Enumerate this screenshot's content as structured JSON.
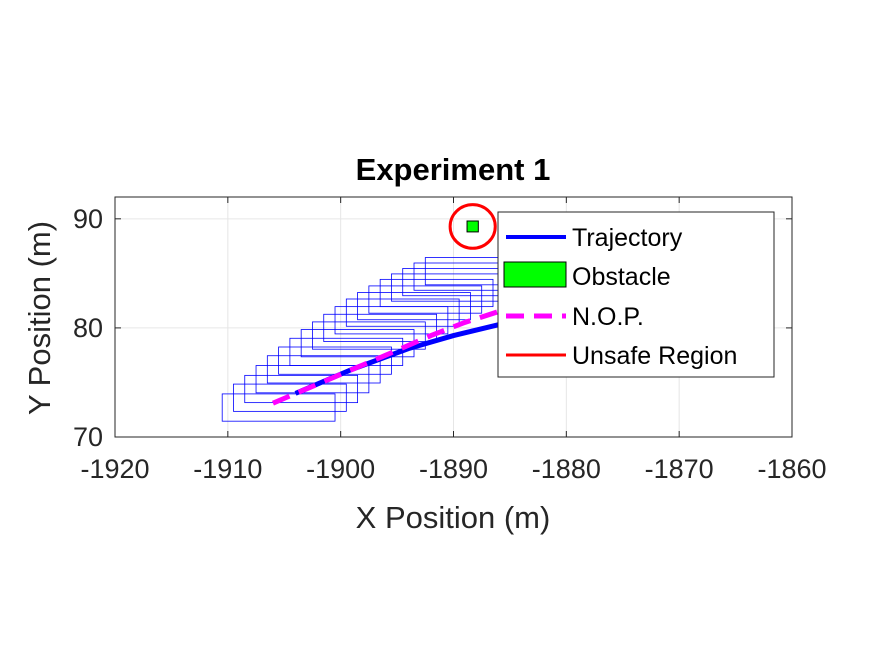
{
  "chart_data": {
    "type": "line",
    "title": "Experiment 1",
    "xlabel": "X Position (m)",
    "ylabel": "Y Position (m)",
    "xlim": [
      -1920,
      -1860
    ],
    "ylim": [
      70,
      92
    ],
    "xticks": [
      -1920,
      -1910,
      -1900,
      -1890,
      -1880,
      -1870,
      -1860
    ],
    "xtick_labels": [
      "-1920",
      "-1910",
      "-1900",
      "-1890",
      "-1880",
      "-1870",
      "-1860"
    ],
    "yticks": [
      70,
      80,
      90
    ],
    "ytick_labels": [
      "70",
      "80",
      "90"
    ],
    "grid": true,
    "legend_location": "top-right",
    "colors": {
      "trajectory": "#0000ff",
      "obstacle": "#00ff00",
      "nop": "#ff00ff",
      "unsafe": "#ff0000",
      "boxes": "#0000ff"
    },
    "series": [
      {
        "name": "Trajectory",
        "style": "solid",
        "x": [
          -1904,
          -1899,
          -1894,
          -1890,
          -1886,
          -1883
        ],
        "y": [
          74,
          76.2,
          78.1,
          79.3,
          80.3,
          81.1
        ]
      },
      {
        "name": "Obstacle",
        "style": "filled-square",
        "x": [
          -1888.3
        ],
        "y": [
          89.3
        ],
        "half_size": [
          0.5,
          0.5
        ]
      },
      {
        "name": "N.O.P.",
        "style": "dashed",
        "x": [
          -1906,
          -1901,
          -1896,
          -1892,
          -1889,
          -1886,
          -1883
        ],
        "y": [
          73.1,
          75.3,
          77.5,
          79.3,
          80.5,
          81.5,
          82.3
        ]
      },
      {
        "name": "Unsafe Region",
        "style": "circle",
        "center": [
          -1888.3,
          89.3
        ],
        "radius": 2
      }
    ],
    "reachable_sets": {
      "width": 10,
      "height": 2.5,
      "centers": [
        [
          -1905.5,
          72.7
        ],
        [
          -1904.5,
          73.6
        ],
        [
          -1903.5,
          74.4
        ],
        [
          -1902.5,
          75.3
        ],
        [
          -1901.5,
          76.2
        ],
        [
          -1900.5,
          77.0
        ],
        [
          -1899.5,
          77.8
        ],
        [
          -1898.5,
          78.6
        ],
        [
          -1897.5,
          79.3
        ],
        [
          -1896.5,
          80.0
        ],
        [
          -1895.5,
          80.7
        ],
        [
          -1894.5,
          81.4
        ],
        [
          -1893.5,
          82.0
        ],
        [
          -1892.5,
          82.6
        ],
        [
          -1891.5,
          83.2
        ],
        [
          -1890.5,
          83.7
        ],
        [
          -1889.5,
          84.2
        ],
        [
          -1888.5,
          84.7
        ],
        [
          -1887.5,
          85.2
        ]
      ]
    }
  }
}
